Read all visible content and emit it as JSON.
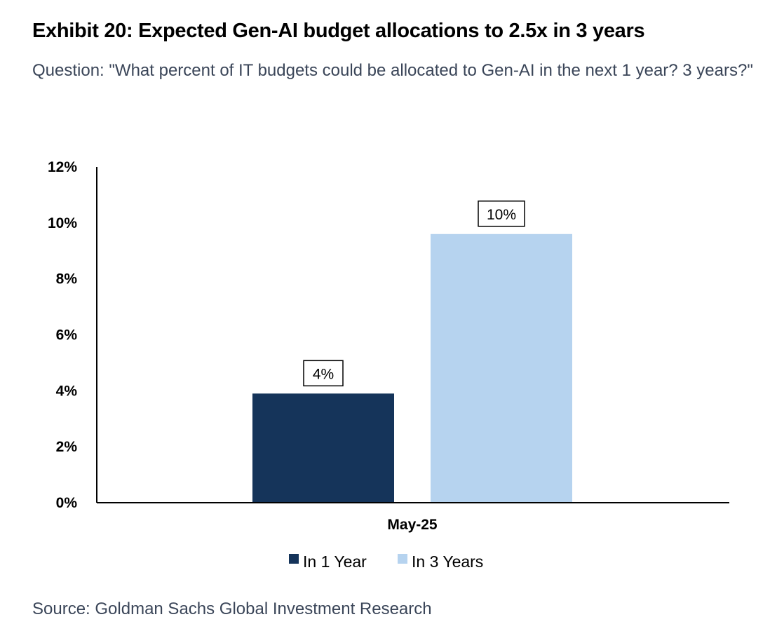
{
  "header": {
    "title": "Exhibit 20: Expected Gen-AI budget allocations to 2.5x in 3 years",
    "subtitle": "Question: \"What percent of IT budgets could be allocated to Gen-AI in the next 1 year? 3 years?\""
  },
  "footer": {
    "source": "Source: Goldman Sachs Global Investment Research"
  },
  "chart_data": {
    "type": "bar",
    "categories": [
      "May-25"
    ],
    "series": [
      {
        "name": "In 1 Year",
        "values": [
          3.9
        ],
        "label": "4%",
        "color": "#15345a"
      },
      {
        "name": "In 3 Years",
        "values": [
          9.6
        ],
        "label": "10%",
        "color": "#b6d3ef"
      }
    ],
    "title": "Exhibit 20: Expected Gen-AI budget allocations to 2.5x in 3 years",
    "xlabel": "",
    "ylabel": "",
    "ylim": [
      0,
      12
    ],
    "yticks": [
      0,
      2,
      4,
      6,
      8,
      10,
      12
    ],
    "ytick_labels": [
      "0%",
      "2%",
      "4%",
      "6%",
      "8%",
      "10%",
      "12%"
    ],
    "grid": false,
    "legend": "bottom-center"
  }
}
